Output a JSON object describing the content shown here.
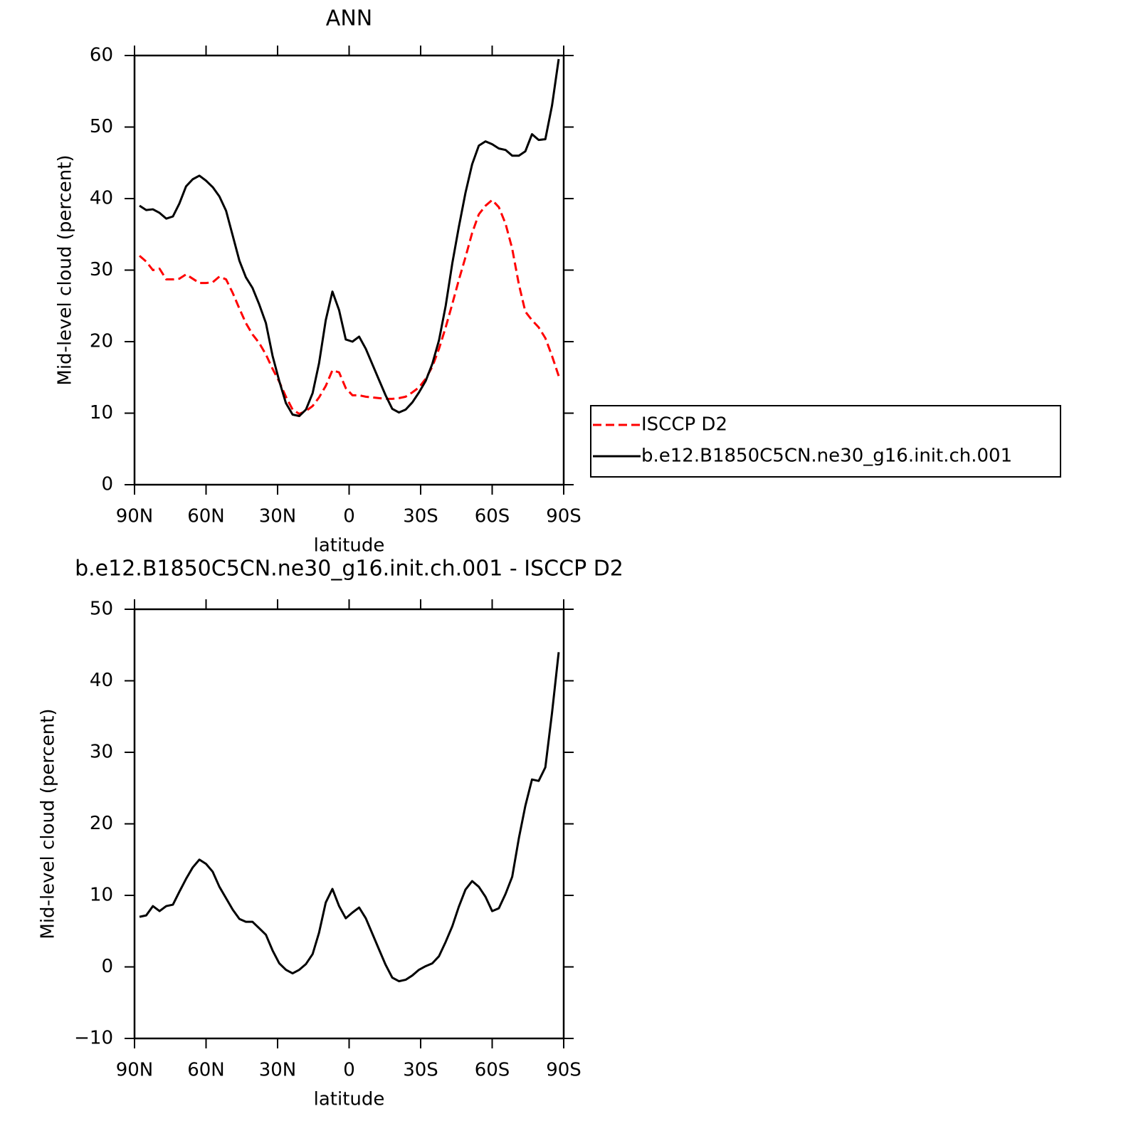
{
  "chart_data": [
    {
      "type": "line",
      "title": "ANN",
      "xlabel": "latitude",
      "ylabel": "Mid-level cloud (percent)",
      "x": [
        87.9,
        85.1,
        82.3,
        79.5,
        76.7,
        73.9,
        71.2,
        68.4,
        65.6,
        62.8,
        60.0,
        57.2,
        54.4,
        51.6,
        48.8,
        46.0,
        43.3,
        40.5,
        37.7,
        34.9,
        32.1,
        29.3,
        26.5,
        23.7,
        20.9,
        18.1,
        15.3,
        12.6,
        9.8,
        7.0,
        4.2,
        1.4,
        -1.4,
        -4.2,
        -7.0,
        -9.8,
        -12.6,
        -15.3,
        -18.1,
        -20.9,
        -23.7,
        -26.5,
        -29.3,
        -32.1,
        -34.9,
        -37.7,
        -40.5,
        -43.3,
        -46.0,
        -48.8,
        -51.6,
        -54.4,
        -57.2,
        -60.0,
        -62.8,
        -65.6,
        -68.4,
        -71.2,
        -73.9,
        -76.7,
        -79.5,
        -82.3,
        -85.1,
        -87.9
      ],
      "series": [
        {
          "name": "ISCCP D2",
          "color": "#ff0000",
          "dashed": true,
          "values": [
            32.0,
            31.2,
            30.0,
            30.2,
            28.7,
            28.7,
            28.8,
            29.4,
            28.8,
            28.2,
            28.2,
            28.3,
            29.1,
            28.7,
            26.8,
            24.6,
            22.6,
            21.0,
            19.8,
            18.2,
            16.2,
            14.4,
            12.3,
            10.5,
            9.9,
            10.3,
            11.0,
            12.2,
            13.8,
            16.0,
            15.7,
            13.5,
            12.5,
            12.5,
            12.3,
            12.2,
            12.1,
            12.0,
            12.0,
            12.1,
            12.3,
            12.9,
            13.6,
            14.8,
            16.5,
            19.0,
            22.0,
            25.3,
            28.6,
            31.8,
            35.2,
            37.8,
            39.0,
            39.8,
            38.8,
            36.5,
            33.0,
            28.0,
            24.2,
            23.0,
            22.0,
            20.5,
            18.0,
            15.2
          ]
        },
        {
          "name": "b.e12.B1850C5CN.ne30_g16.init.ch.001",
          "color": "#000000",
          "dashed": false,
          "values": [
            39.0,
            38.4,
            38.5,
            38.0,
            37.2,
            37.5,
            39.3,
            41.7,
            42.7,
            43.2,
            42.5,
            41.6,
            40.3,
            38.3,
            34.8,
            31.3,
            29.0,
            27.5,
            25.2,
            22.6,
            18.0,
            14.5,
            11.4,
            9.8,
            9.6,
            10.5,
            12.8,
            17.0,
            23.0,
            27.0,
            24.4,
            20.3,
            20.0,
            20.7,
            19.0,
            16.8,
            14.6,
            12.5,
            10.6,
            10.1,
            10.5,
            11.5,
            12.9,
            14.5,
            16.9,
            20.2,
            25.0,
            31.0,
            36.0,
            40.8,
            44.8,
            47.4,
            48.0,
            47.6,
            47.0,
            46.8,
            46.0,
            46.0,
            46.6,
            49.0,
            48.2,
            48.3,
            53.0,
            59.5
          ]
        }
      ],
      "xlim": [
        90,
        -90
      ],
      "xticks": [
        {
          "value": 90,
          "label": "90N"
        },
        {
          "value": 60,
          "label": "60N"
        },
        {
          "value": 30,
          "label": "30N"
        },
        0,
        {
          "value": -30,
          "label": "30S"
        },
        {
          "value": -60,
          "label": "60S"
        },
        {
          "value": -90,
          "label": "90S"
        }
      ],
      "ylim": [
        0,
        60
      ],
      "yticks": [
        0,
        10,
        20,
        30,
        40,
        50,
        60
      ],
      "legend": "right"
    },
    {
      "type": "line",
      "title": "b.e12.B1850C5CN.ne30_g16.init.ch.001 - ISCCP D2",
      "xlabel": "latitude",
      "ylabel": "Mid-level cloud (percent)",
      "x": [
        87.9,
        85.1,
        82.3,
        79.5,
        76.7,
        73.9,
        71.2,
        68.4,
        65.6,
        62.8,
        60.0,
        57.2,
        54.4,
        51.6,
        48.8,
        46.0,
        43.3,
        40.5,
        37.7,
        34.9,
        32.1,
        29.3,
        26.5,
        23.7,
        20.9,
        18.1,
        15.3,
        12.6,
        9.8,
        7.0,
        4.2,
        1.4,
        -1.4,
        -4.2,
        -7.0,
        -9.8,
        -12.6,
        -15.3,
        -18.1,
        -20.9,
        -23.7,
        -26.5,
        -29.3,
        -32.1,
        -34.9,
        -37.7,
        -40.5,
        -43.3,
        -46.0,
        -48.8,
        -51.6,
        -54.4,
        -57.2,
        -60.0,
        -62.8,
        -65.6,
        -68.4,
        -71.2,
        -73.9,
        -76.7,
        -79.5,
        -82.3,
        -85.1,
        -87.9
      ],
      "series": [
        {
          "color": "#000000",
          "dashed": false,
          "values": [
            7.0,
            7.2,
            8.5,
            7.8,
            8.5,
            8.7,
            10.5,
            12.3,
            13.9,
            15.0,
            14.4,
            13.3,
            11.2,
            9.6,
            8.0,
            6.7,
            6.3,
            6.3,
            5.4,
            4.5,
            2.3,
            0.5,
            -0.4,
            -0.9,
            -0.4,
            0.4,
            1.8,
            4.8,
            9.0,
            10.9,
            8.5,
            6.8,
            7.6,
            8.3,
            6.8,
            4.6,
            2.4,
            0.3,
            -1.5,
            -2.0,
            -1.8,
            -1.2,
            -0.4,
            0.1,
            0.5,
            1.5,
            3.5,
            5.7,
            8.4,
            10.8,
            12.0,
            11.2,
            9.8,
            7.8,
            8.2,
            10.2,
            12.6,
            18.0,
            22.5,
            26.2,
            26.0,
            27.9,
            35.5,
            44.0
          ]
        }
      ],
      "xlim": [
        90,
        -90
      ],
      "xticks": [
        {
          "value": 90,
          "label": "90N"
        },
        {
          "value": 60,
          "label": "60N"
        },
        {
          "value": 30,
          "label": "30N"
        },
        0,
        {
          "value": -30,
          "label": "30S"
        },
        {
          "value": -60,
          "label": "60S"
        },
        {
          "value": -90,
          "label": "90S"
        }
      ],
      "ylim": [
        -10,
        50
      ],
      "yticks": [
        {
          "value": -10,
          "label": "−10"
        },
        0,
        10,
        20,
        30,
        40,
        50
      ]
    }
  ]
}
